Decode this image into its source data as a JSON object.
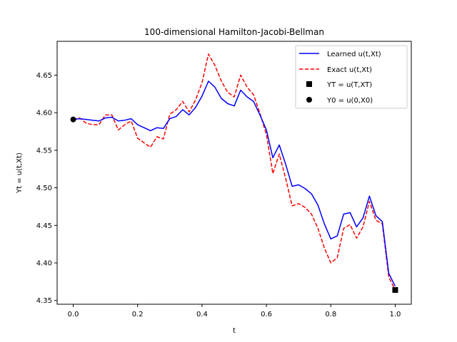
{
  "chart_data": {
    "type": "line",
    "title": "100-dimensional Hamilton-Jacobi-Bellman",
    "xlabel": "t",
    "ylabel": "Yt = u(t,Xt)",
    "xlim": [
      -0.05,
      1.05
    ],
    "ylim": [
      4.345,
      4.695
    ],
    "xticks": [
      0.0,
      0.2,
      0.4,
      0.6,
      0.8,
      1.0
    ],
    "xtick_labels": [
      "0.0",
      "0.2",
      "0.4",
      "0.6",
      "0.8",
      "1.0"
    ],
    "yticks": [
      4.35,
      4.4,
      4.45,
      4.5,
      4.55,
      4.6,
      4.65
    ],
    "ytick_labels": [
      "4.35",
      "4.40",
      "4.45",
      "4.50",
      "4.55",
      "4.60",
      "4.65"
    ],
    "grid": false,
    "legend_position": "top-right",
    "x": [
      0.0,
      0.02,
      0.04,
      0.06,
      0.08,
      0.1,
      0.12,
      0.14,
      0.16,
      0.18,
      0.2,
      0.22,
      0.24,
      0.26,
      0.28,
      0.3,
      0.32,
      0.34,
      0.36,
      0.38,
      0.4,
      0.42,
      0.44,
      0.46,
      0.48,
      0.5,
      0.52,
      0.54,
      0.56,
      0.58,
      0.6,
      0.62,
      0.64,
      0.66,
      0.68,
      0.7,
      0.72,
      0.74,
      0.76,
      0.78,
      0.8,
      0.82,
      0.84,
      0.86,
      0.88,
      0.9,
      0.92,
      0.94,
      0.96,
      0.98,
      1.0
    ],
    "series": [
      {
        "name": "Learned u(t,Xt)",
        "color": "#0000ff",
        "style": "solid",
        "values": [
          4.591,
          4.592,
          4.591,
          4.59,
          4.589,
          4.593,
          4.594,
          4.589,
          4.59,
          4.592,
          4.584,
          4.58,
          4.576,
          4.58,
          4.579,
          4.592,
          4.595,
          4.604,
          4.597,
          4.607,
          4.622,
          4.642,
          4.634,
          4.619,
          4.612,
          4.609,
          4.63,
          4.621,
          4.615,
          4.597,
          4.577,
          4.54,
          4.557,
          4.531,
          4.502,
          4.504,
          4.499,
          4.492,
          4.477,
          4.452,
          4.432,
          4.436,
          4.465,
          4.467,
          4.448,
          4.46,
          4.489,
          4.463,
          4.455,
          4.386,
          4.369
        ]
      },
      {
        "name": "Exact u(t,Xt)",
        "color": "#ff0000",
        "style": "dashed",
        "values": [
          4.591,
          4.593,
          4.586,
          4.584,
          4.584,
          4.597,
          4.597,
          4.577,
          4.584,
          4.589,
          4.566,
          4.56,
          4.554,
          4.568,
          4.565,
          4.598,
          4.604,
          4.615,
          4.601,
          4.617,
          4.64,
          4.678,
          4.663,
          4.642,
          4.627,
          4.621,
          4.65,
          4.634,
          4.624,
          4.599,
          4.571,
          4.519,
          4.545,
          4.512,
          4.476,
          4.479,
          4.474,
          4.465,
          4.446,
          4.42,
          4.4,
          4.407,
          4.446,
          4.451,
          4.433,
          4.448,
          4.482,
          4.457,
          4.452,
          4.381,
          4.364
        ]
      }
    ],
    "markers": [
      {
        "name": "YT = u(T,XT)",
        "symbol": "square",
        "color": "#000000",
        "x": 1.0,
        "y": 4.364
      },
      {
        "name": "Y0 = u(0,X0)",
        "symbol": "circle",
        "color": "#000000",
        "x": 0.0,
        "y": 4.591
      }
    ]
  }
}
